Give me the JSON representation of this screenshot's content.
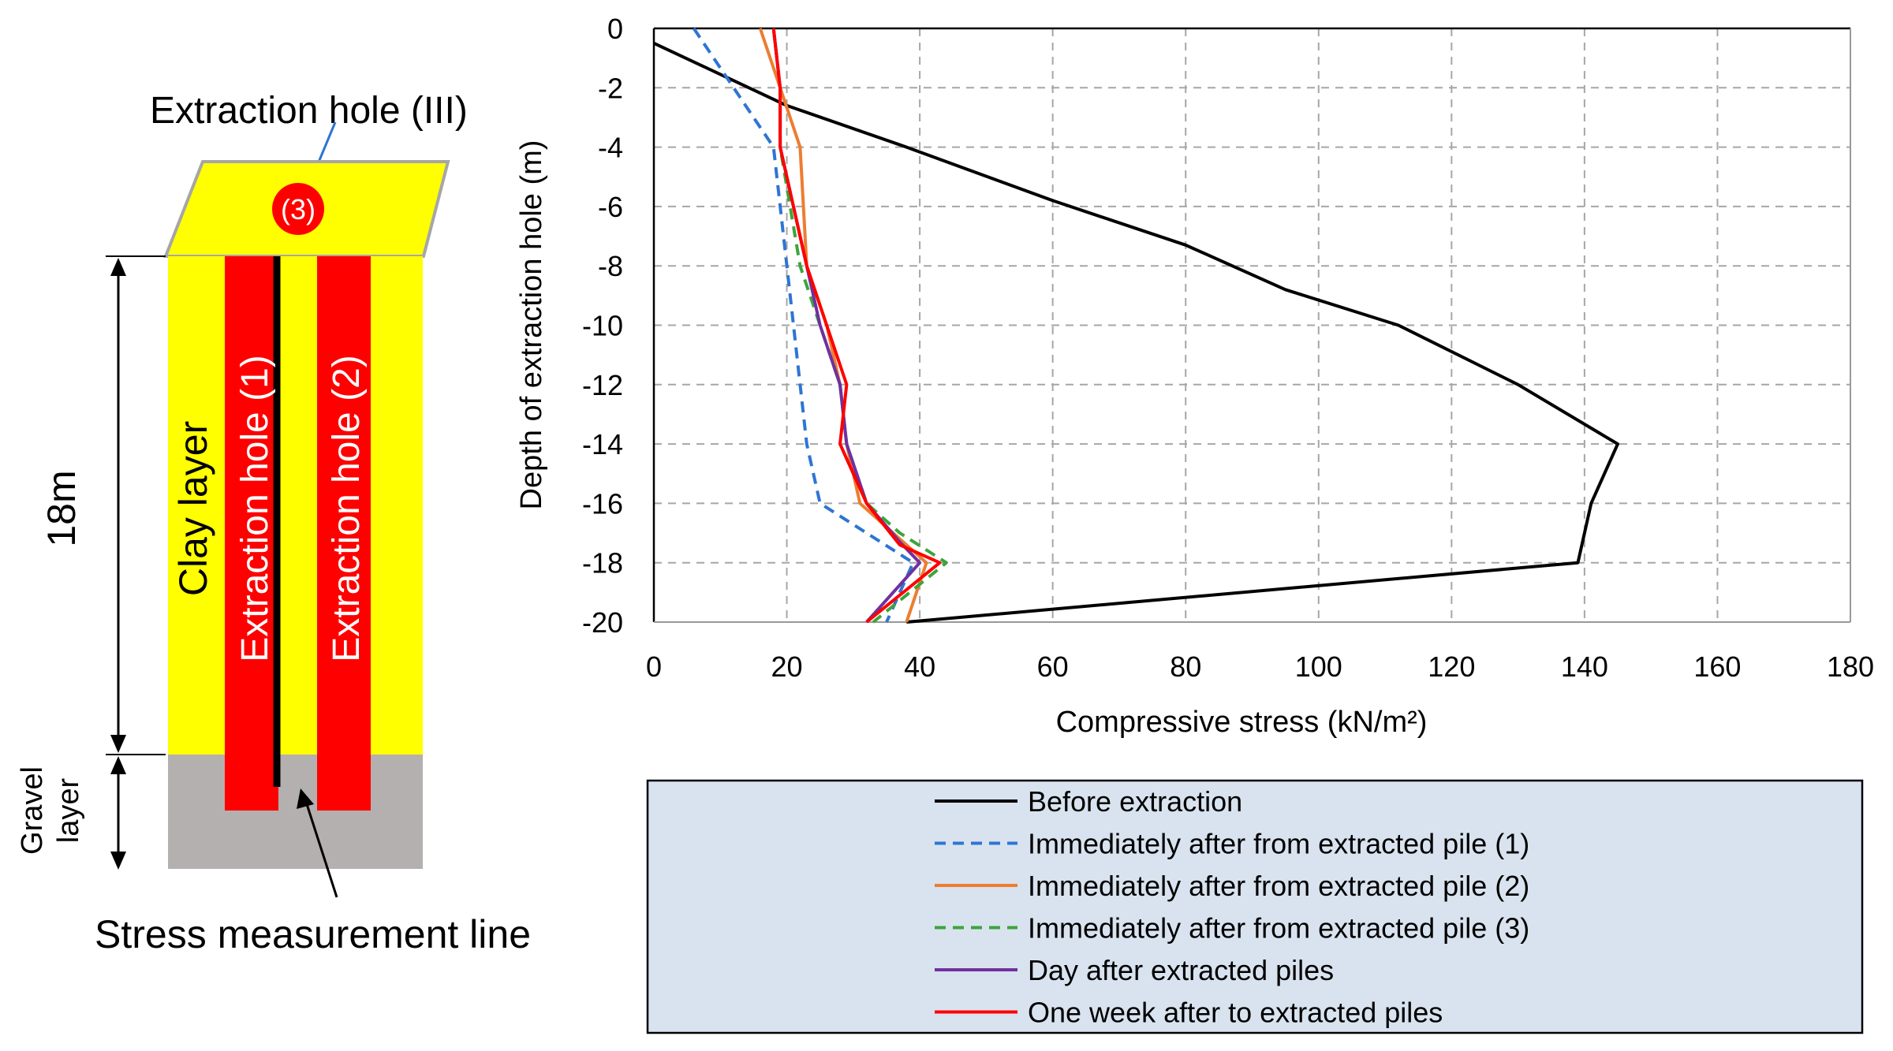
{
  "diagram": {
    "hole3_title": "Extraction hole (III)",
    "hole3_marker": "(3)",
    "clay_label": "Clay layer",
    "hole1_label": "Extraction hole (1)",
    "hole2_label": "Extraction hole (2)",
    "depth_label": "18m",
    "gravel_label_line1": "Gravel",
    "gravel_label_line2": "layer",
    "measurement_label": "Stress measurement line",
    "colors": {
      "clay": "#ffff00",
      "gravel": "#b3b0af",
      "hole": "#ff0000",
      "cap_border": "#a6a6a6"
    }
  },
  "chart_data": {
    "type": "line",
    "title": "",
    "xlabel": "Compressive stress (kN/m²)",
    "ylabel": "Depth of extraction hole (m)",
    "xlim": [
      0,
      180
    ],
    "ylim": [
      -20,
      0
    ],
    "xticks": [
      0,
      20,
      40,
      60,
      80,
      100,
      120,
      140,
      160,
      180
    ],
    "yticks": [
      0,
      -2,
      -4,
      -6,
      -8,
      -10,
      -12,
      -14,
      -16,
      -18,
      -20
    ],
    "grid": true,
    "legend_position": "below",
    "series": [
      {
        "name": "Before extraction",
        "color": "#000000",
        "dash": "solid",
        "points": [
          [
            0,
            -0.5
          ],
          [
            20,
            -2.6
          ],
          [
            38,
            -4
          ],
          [
            60,
            -5.8
          ],
          [
            80,
            -7.3
          ],
          [
            95,
            -8.8
          ],
          [
            112,
            -10
          ],
          [
            130,
            -12
          ],
          [
            145,
            -14
          ],
          [
            141,
            -16
          ],
          [
            139,
            -18
          ],
          [
            38,
            -20
          ]
        ]
      },
      {
        "name": "Immediately after from extracted pile (1)",
        "color": "#2e75d3",
        "dash": "dashed",
        "points": [
          [
            6,
            0
          ],
          [
            12,
            -2
          ],
          [
            18,
            -4
          ],
          [
            20,
            -8
          ],
          [
            21,
            -10
          ],
          [
            22,
            -12
          ],
          [
            23,
            -14
          ],
          [
            25,
            -16
          ],
          [
            39,
            -18
          ],
          [
            35,
            -20
          ]
        ]
      },
      {
        "name": "Immediately after from extracted pile (2)",
        "color": "#ed7d31",
        "dash": "solid",
        "points": [
          [
            16,
            0
          ],
          [
            19,
            -2
          ],
          [
            22,
            -4
          ],
          [
            23,
            -8
          ],
          [
            26,
            -10
          ],
          [
            28,
            -12
          ],
          [
            29,
            -14
          ],
          [
            31,
            -16
          ],
          [
            36,
            -17
          ],
          [
            41,
            -18
          ],
          [
            38,
            -20
          ]
        ]
      },
      {
        "name": "Immediately after from extracted pile (3)",
        "color": "#3ca53c",
        "dash": "dashed",
        "points": [
          [
            18,
            0
          ],
          [
            19,
            -2
          ],
          [
            19,
            -4
          ],
          [
            22,
            -8
          ],
          [
            25,
            -10
          ],
          [
            28,
            -12
          ],
          [
            29,
            -14
          ],
          [
            32,
            -16
          ],
          [
            37,
            -17
          ],
          [
            44,
            -18
          ],
          [
            33,
            -20
          ]
        ]
      },
      {
        "name": "Day after extracted piles",
        "color": "#7030a0",
        "dash": "solid",
        "points": [
          [
            18,
            0
          ],
          [
            19,
            -2
          ],
          [
            19,
            -4
          ],
          [
            23,
            -8
          ],
          [
            25,
            -10
          ],
          [
            28,
            -12
          ],
          [
            29,
            -14
          ],
          [
            32,
            -16
          ],
          [
            37,
            -17.3
          ],
          [
            40,
            -18
          ],
          [
            32,
            -20
          ]
        ]
      },
      {
        "name": "One week after to extracted piles",
        "color": "#ff0000",
        "dash": "solid",
        "points": [
          [
            18,
            0
          ],
          [
            19,
            -2
          ],
          [
            19,
            -4
          ],
          [
            23,
            -8
          ],
          [
            26,
            -10
          ],
          [
            29,
            -12
          ],
          [
            28,
            -14
          ],
          [
            32,
            -16
          ],
          [
            37,
            -17.4
          ],
          [
            43,
            -18
          ],
          [
            32,
            -20
          ]
        ]
      }
    ]
  }
}
